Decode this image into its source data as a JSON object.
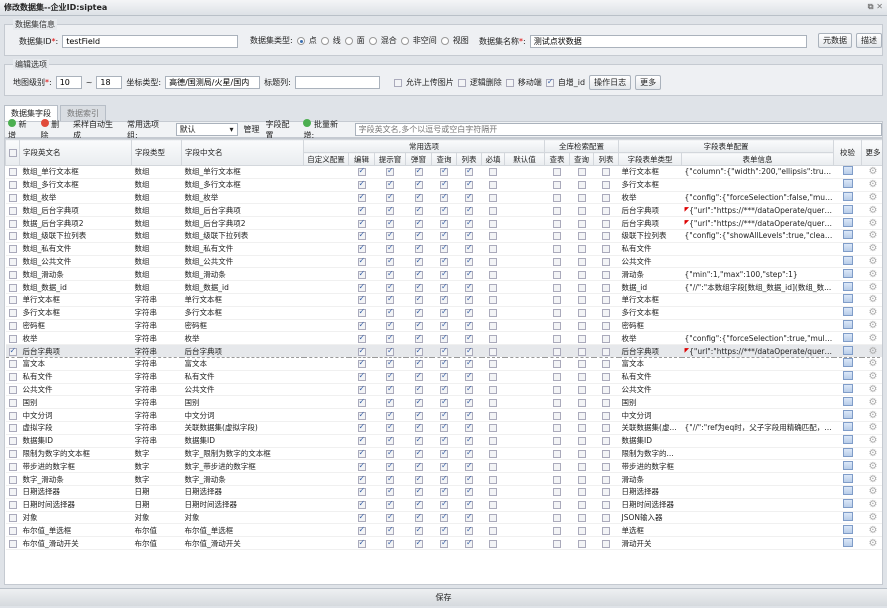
{
  "window": {
    "title": "修改数据集--企业ID:siptea",
    "controls": "⧉ ✕"
  },
  "info": {
    "legend": "数据集信息",
    "id_label": "数据集ID",
    "id_value": "testField",
    "type_label": "数据集类型:",
    "types": [
      "点",
      "线",
      "面",
      "混合",
      "非空间",
      "视图"
    ],
    "type_selected": 0,
    "name_label": "数据集名称",
    "name_value": "测试点状数据",
    "btn_meta": "元数据",
    "btn_desc": "描述"
  },
  "edit": {
    "legend": "编辑选项",
    "level_label": "地图级别",
    "level_min": "10",
    "level_sep": "~",
    "level_max": "18",
    "coord_label": "坐标类型:",
    "coord_value": "高德/国测局/火星/国内",
    "title_col_label": "标题列:",
    "title_col_value": "",
    "upload_img": "允许上传图片",
    "upload_img_checked": false,
    "logic_del": "逻辑删除",
    "logic_del_checked": false,
    "mobile": "移动端",
    "mobile_checked": false,
    "auto_id": "自增_id",
    "auto_id_checked": true,
    "btn_log": "操作日志",
    "btn_more": "更多"
  },
  "tabs": [
    {
      "label": "数据集字段",
      "active": true
    },
    {
      "label": "数据索引",
      "active": false
    }
  ],
  "toolbar": {
    "add": "新增",
    "delete": "删除",
    "sample": "采样自动生成",
    "group_label": "常用选项组:",
    "group_value": "默认",
    "manage": "管理",
    "field_config": "字段配置",
    "batch_add": "批量新增:",
    "batch_placeholder": "字段英文名,多个以逗号或空白字符隔开"
  },
  "headers": {
    "en": "字段英文名",
    "type": "字段类型",
    "cn": "字段中文名",
    "common": "常用选项",
    "common_cols": [
      "自定义配置",
      "编辑",
      "提示窗",
      "弹窗",
      "查询",
      "列表",
      "必填",
      "默认值"
    ],
    "search": "全库检索配置",
    "search_cols": [
      "查表",
      "查询",
      "列表"
    ],
    "form": "字段表单配置",
    "form_cols": [
      "字段表单类型",
      "表单信息"
    ],
    "valid": "校验",
    "more": "更多"
  },
  "row_checks": {
    "edit": true,
    "tip": true,
    "popup": true,
    "query": true,
    "list": true,
    "required": false,
    "s_table": false,
    "s_query": false,
    "s_list": false
  },
  "rows": [
    {
      "en": "数组_单行文本框",
      "type": "数组",
      "cn": "数组_单行文本框",
      "form": "单行文本框",
      "info": "{\"column\":{\"width\":200,\"ellipsis\":true,\"ali...",
      "sel": false,
      "flag": false
    },
    {
      "en": "数组_多行文本框",
      "type": "数组",
      "cn": "数组_多行文本框",
      "form": "多行文本框",
      "info": "",
      "sel": false,
      "flag": false
    },
    {
      "en": "数组_枚举",
      "type": "数组",
      "cn": "数组_枚举",
      "form": "枚举",
      "info": "{\"config\":{\"forceSelection\":false,\"multiSel...",
      "sel": false,
      "flag": false
    },
    {
      "en": "数组_后台字典项",
      "type": "数组",
      "cn": "数组_后台字典项",
      "form": "后台字典项",
      "info": "{\"url\":\"https://***/dataOperate/queryDic...",
      "sel": false,
      "flag": true
    },
    {
      "en": "数据_后台字典项2",
      "type": "数组",
      "cn": "数组_后台字典项2",
      "form": "后台字典项",
      "info": "{\"url\":\"https://***/dataOperate/queryDic...",
      "sel": false,
      "flag": true
    },
    {
      "en": "数组_级联下拉列表",
      "type": "数组",
      "cn": "数组_级联下拉列表",
      "form": "级联下拉列表",
      "info": "{\"config\":{\"showAllLevels\":true,\"clearable...",
      "sel": false,
      "flag": false
    },
    {
      "en": "数组_私有文件",
      "type": "数组",
      "cn": "数组_私有文件",
      "form": "私有文件",
      "info": "",
      "sel": false,
      "flag": false
    },
    {
      "en": "数组_公共文件",
      "type": "数组",
      "cn": "数组_公共文件",
      "form": "公共文件",
      "info": "",
      "sel": false,
      "flag": false
    },
    {
      "en": "数组_滑动条",
      "type": "数组",
      "cn": "数组_滑动条",
      "form": "滑动条",
      "info": "{\"min\":1,\"max\":100,\"step\":1}",
      "sel": false,
      "flag": false
    },
    {
      "en": "数组_数据_id",
      "type": "数组",
      "cn": "数组_数据_id",
      "form": "数据_id",
      "info": "{\"//\":\"本数组字段[数组_数据_id](数组_数...",
      "sel": false,
      "flag": false
    },
    {
      "en": "单行文本框",
      "type": "字符串",
      "cn": "单行文本框",
      "form": "单行文本框",
      "info": "",
      "sel": false,
      "flag": false
    },
    {
      "en": "多行文本框",
      "type": "字符串",
      "cn": "多行文本框",
      "form": "多行文本框",
      "info": "",
      "sel": false,
      "flag": false
    },
    {
      "en": "密码框",
      "type": "字符串",
      "cn": "密码框",
      "form": "密码框",
      "info": "",
      "sel": false,
      "flag": false
    },
    {
      "en": "枚举",
      "type": "字符串",
      "cn": "枚举",
      "form": "枚举",
      "info": "{\"config\":{\"forceSelection\":true,\"multiSel...",
      "sel": false,
      "flag": false
    },
    {
      "en": "后台字典项",
      "type": "字符串",
      "cn": "后台字典项",
      "form": "后台字典项",
      "info": "{\"url\":\"https://***/dataOperate/queryDic...",
      "sel": true,
      "flag": true
    },
    {
      "en": "富文本",
      "type": "字符串",
      "cn": "富文本",
      "form": "富文本",
      "info": "",
      "sel": false,
      "flag": false
    },
    {
      "en": "私有文件",
      "type": "字符串",
      "cn": "私有文件",
      "form": "私有文件",
      "info": "",
      "sel": false,
      "flag": false
    },
    {
      "en": "公共文件",
      "type": "字符串",
      "cn": "公共文件",
      "form": "公共文件",
      "info": "",
      "sel": false,
      "flag": false
    },
    {
      "en": "国别",
      "type": "字符串",
      "cn": "国别",
      "form": "国别",
      "info": "",
      "sel": false,
      "flag": false
    },
    {
      "en": "中文分词",
      "type": "字符串",
      "cn": "中文分词",
      "form": "中文分词",
      "info": "",
      "sel": false,
      "flag": false
    },
    {
      "en": "虚拟字段",
      "type": "字符串",
      "cn": "关联数据集(虚拟字段)",
      "form": "关联数据集(虚...",
      "info": "{\"//\":\"ref为eq时，父子字段用精确匹配，r...",
      "sel": false,
      "flag": false
    },
    {
      "en": "数据集ID",
      "type": "字符串",
      "cn": "数据集ID",
      "form": "数据集ID",
      "info": "",
      "sel": false,
      "flag": false
    },
    {
      "en": "限制为数字的文本框",
      "type": "数字",
      "cn": "数字_限制为数字的文本框",
      "form": "限制为数字的...",
      "info": "",
      "sel": false,
      "flag": false
    },
    {
      "en": "带步进的数字框",
      "type": "数字",
      "cn": "数字_带步进的数字框",
      "form": "带步进的数字框",
      "info": "",
      "sel": false,
      "flag": false
    },
    {
      "en": "数字_滑动条",
      "type": "数字",
      "cn": "数字_滑动条",
      "form": "滑动条",
      "info": "",
      "sel": false,
      "flag": false
    },
    {
      "en": "日期选择器",
      "type": "日期",
      "cn": "日期选择器",
      "form": "日期选择器",
      "info": "",
      "sel": false,
      "flag": false
    },
    {
      "en": "日期时间选择器",
      "type": "日期",
      "cn": "日期时间选择器",
      "form": "日期时间选择器",
      "info": "",
      "sel": false,
      "flag": false
    },
    {
      "en": "对象",
      "type": "对象",
      "cn": "对象",
      "form": "JSON输入器",
      "info": "",
      "sel": false,
      "flag": false
    },
    {
      "en": "布尔值_单选框",
      "type": "布尔值",
      "cn": "布尔值_单选框",
      "form": "单选框",
      "info": "",
      "sel": false,
      "flag": false
    },
    {
      "en": "布尔值_滑动开关",
      "type": "布尔值",
      "cn": "布尔值_滑动开关",
      "form": "滑动开关",
      "info": "",
      "sel": false,
      "flag": false
    }
  ],
  "footer": {
    "save": "保存"
  }
}
